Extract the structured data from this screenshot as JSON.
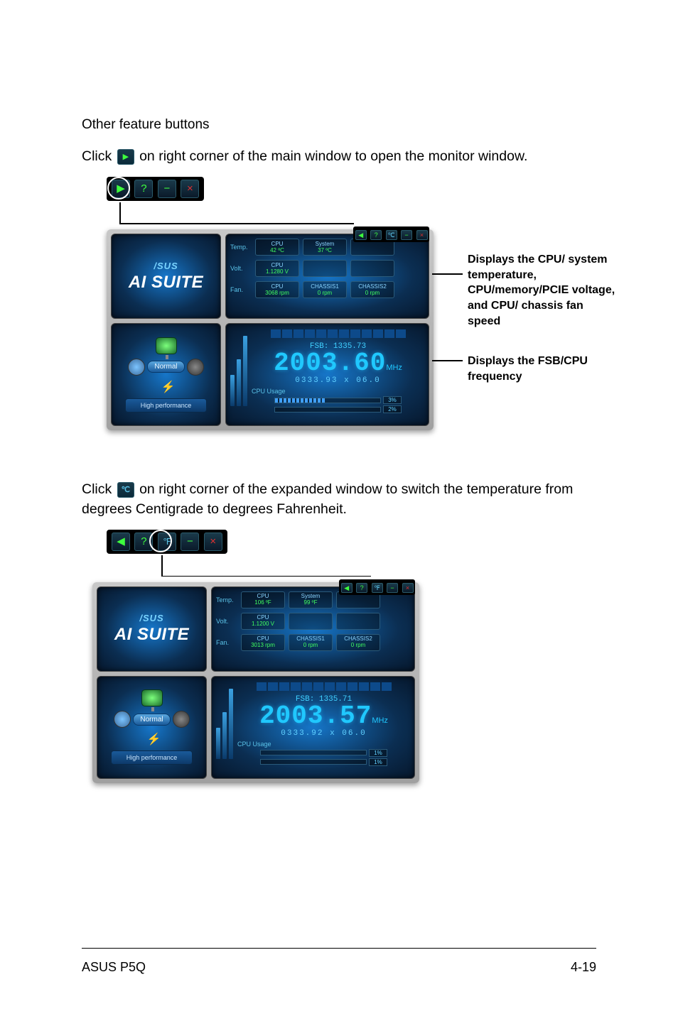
{
  "heading": "Other feature buttons",
  "para1_pre": "Click ",
  "para1_post": " on right corner of the main window to open the monitor window.",
  "para2_pre": "Click ",
  "para2_mid": " on right corner of the expanded window to switch the temperature from degrees Centigrade to degrees Fahrenheit.",
  "titlebar1": {
    "btn1": "▶",
    "btn2": "?",
    "btn3": "−",
    "btn4": "×"
  },
  "titlebar2": {
    "btn1": "◀",
    "btn2": "?",
    "btn3": "℉",
    "btn4": "−",
    "btn5": "×"
  },
  "suite_top_btns_c": [
    "◀",
    "?",
    "℃",
    "−",
    "×"
  ],
  "suite_top_btns_f": [
    "◀",
    "?",
    "℉",
    "−",
    "×"
  ],
  "logo": {
    "brand": "/SUS",
    "product": "AI SUITE"
  },
  "mode": {
    "label": "Normal",
    "bottom": "High performance"
  },
  "sensor_c": {
    "temp_label": "Temp.",
    "volt_label": "Volt.",
    "fan_label": "Fan.",
    "cpu_temp": {
      "t": "CPU",
      "v": "42 ºC"
    },
    "sys_temp": {
      "t": "System",
      "v": "37 ºC"
    },
    "cpu_volt": {
      "t": "CPU",
      "v": "1.1280 V"
    },
    "cpu_fan": {
      "t": "CPU",
      "v": "3068 rpm"
    },
    "ch1_fan": {
      "t": "CHASSIS1",
      "v": "0 rpm"
    },
    "ch2_fan": {
      "t": "CHASSIS2",
      "v": "0 rpm"
    }
  },
  "sensor_f": {
    "temp_label": "Temp.",
    "volt_label": "Volt.",
    "fan_label": "Fan.",
    "cpu_temp": {
      "t": "CPU",
      "v": "106 ºF"
    },
    "sys_temp": {
      "t": "System",
      "v": "99 ºF"
    },
    "cpu_volt": {
      "t": "CPU",
      "v": "1.1200 V"
    },
    "cpu_fan": {
      "t": "CPU",
      "v": "3013 rpm"
    },
    "ch1_fan": {
      "t": "CHASSIS1",
      "v": "0 rpm"
    },
    "ch2_fan": {
      "t": "CHASSIS2",
      "v": "0 rpm"
    }
  },
  "freq_c": {
    "fsb": "FSB: 1335.73",
    "big": "2003.60",
    "unit": "MHz",
    "mult": "0333.93 x 06.0",
    "usage_label": "CPU Usage",
    "u1_width": 72,
    "u2_width": 56,
    "u1": "3%",
    "u2": "2%"
  },
  "freq_f": {
    "fsb": "FSB: 1335.71",
    "big": "2003.57",
    "unit": "MHz",
    "mult": "0333.92 x 06.0",
    "usage_label": "CPU Usage",
    "u1_width": 36,
    "u2_width": 36,
    "u1": "1%",
    "u2": "1%"
  },
  "callout1": "Displays the CPU/ system temperature, CPU/memory/PCIE voltage, and CPU/ chassis fan speed",
  "callout2": "Displays the FSB/CPU frequency",
  "footer": {
    "left": "ASUS P5Q",
    "right": "4-19"
  },
  "colors": {
    "accent": "#20c8ff",
    "green": "#40ff60",
    "panel_bg": "#0b2e52",
    "callout_line": "#000000"
  }
}
